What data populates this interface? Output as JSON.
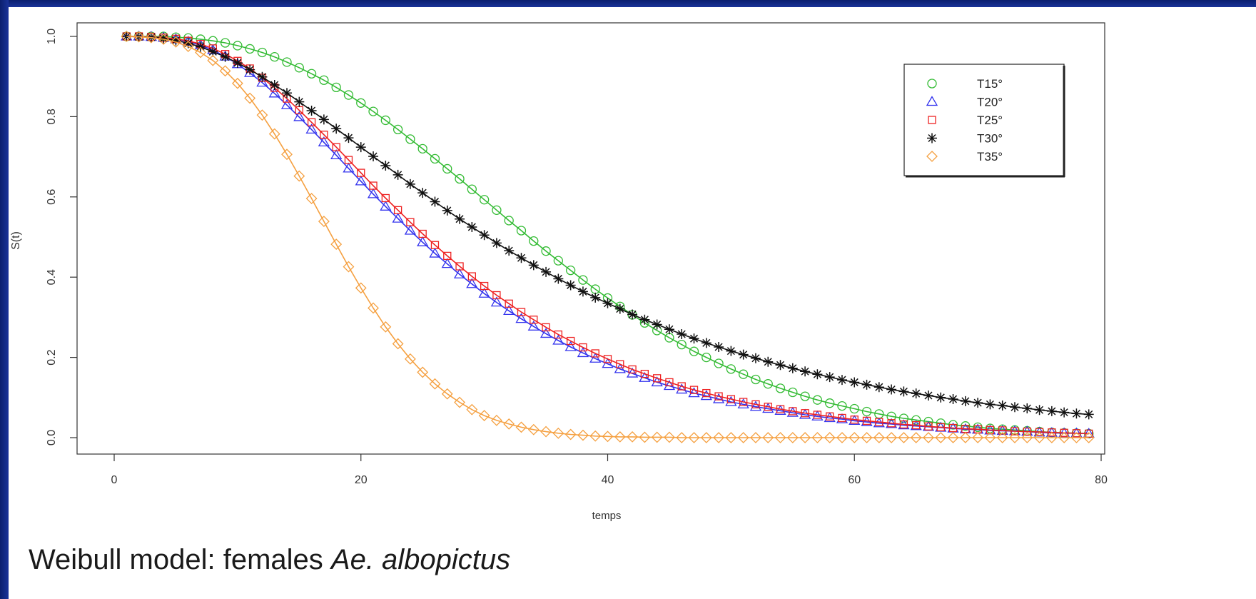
{
  "caption": {
    "prefix": "Weibull model: females ",
    "species": "Ae. albopictus"
  },
  "chart_data": {
    "type": "line",
    "xlabel": "temps",
    "ylabel": "S(t)",
    "xlim": [
      0,
      80
    ],
    "ylim": [
      0,
      1
    ],
    "x_ticks": [
      0,
      20,
      40,
      60,
      80
    ],
    "y_ticks": [
      0.0,
      0.2,
      0.4,
      0.6,
      0.8,
      1.0
    ],
    "x_tick_labels": [
      "0",
      "20",
      "40",
      "60",
      "80"
    ],
    "y_tick_labels": [
      "0.0",
      "0.2",
      "0.4",
      "0.6",
      "0.8",
      "1.0"
    ],
    "grid": false,
    "legend_position": "top-right",
    "x": [
      1,
      2,
      3,
      4,
      5,
      6,
      7,
      8,
      9,
      10,
      11,
      12,
      13,
      14,
      15,
      16,
      17,
      18,
      19,
      20,
      21,
      22,
      23,
      24,
      25,
      26,
      27,
      28,
      29,
      30,
      31,
      32,
      33,
      34,
      35,
      36,
      37,
      38,
      39,
      40,
      41,
      42,
      43,
      44,
      45,
      46,
      47,
      48,
      49,
      50,
      51,
      52,
      53,
      54,
      55,
      56,
      57,
      58,
      59,
      60,
      61,
      62,
      63,
      64,
      65,
      66,
      67,
      68,
      69,
      70,
      71,
      72,
      73,
      74,
      75,
      76,
      77,
      78,
      79
    ],
    "series": [
      {
        "name": "T15°",
        "marker": "circle",
        "color": "#33bb33",
        "values": [
          1.0,
          1.0,
          1.0,
          1.0,
          0.998,
          0.996,
          0.993,
          0.989,
          0.984,
          0.977,
          0.969,
          0.96,
          0.949,
          0.936,
          0.922,
          0.907,
          0.891,
          0.873,
          0.854,
          0.834,
          0.813,
          0.791,
          0.768,
          0.744,
          0.72,
          0.695,
          0.67,
          0.645,
          0.619,
          0.593,
          0.567,
          0.541,
          0.516,
          0.49,
          0.465,
          0.441,
          0.417,
          0.393,
          0.37,
          0.348,
          0.327,
          0.306,
          0.286,
          0.267,
          0.249,
          0.232,
          0.215,
          0.2,
          0.185,
          0.171,
          0.158,
          0.145,
          0.134,
          0.123,
          0.113,
          0.103,
          0.094,
          0.086,
          0.079,
          0.072,
          0.065,
          0.059,
          0.053,
          0.048,
          0.044,
          0.04,
          0.036,
          0.032,
          0.029,
          0.026,
          0.023,
          0.021,
          0.019,
          0.017,
          0.015,
          0.013,
          0.012,
          0.011,
          0.01
        ]
      },
      {
        "name": "T20°",
        "marker": "triangle",
        "color": "#3333ee",
        "values": [
          1.0,
          1.0,
          0.999,
          0.997,
          0.993,
          0.987,
          0.978,
          0.966,
          0.95,
          0.931,
          0.909,
          0.885,
          0.858,
          0.829,
          0.799,
          0.768,
          0.736,
          0.704,
          0.671,
          0.639,
          0.607,
          0.576,
          0.546,
          0.516,
          0.487,
          0.459,
          0.433,
          0.407,
          0.383,
          0.359,
          0.337,
          0.316,
          0.296,
          0.277,
          0.259,
          0.242,
          0.226,
          0.211,
          0.197,
          0.184,
          0.171,
          0.16,
          0.149,
          0.138,
          0.129,
          0.12,
          0.111,
          0.104,
          0.096,
          0.089,
          0.083,
          0.077,
          0.072,
          0.067,
          0.062,
          0.057,
          0.053,
          0.049,
          0.046,
          0.042,
          0.039,
          0.036,
          0.034,
          0.031,
          0.029,
          0.027,
          0.025,
          0.023,
          0.021,
          0.02,
          0.018,
          0.017,
          0.016,
          0.015,
          0.013,
          0.012,
          0.011,
          0.011,
          0.01
        ]
      },
      {
        "name": "T25°",
        "marker": "square",
        "color": "#ee2222",
        "values": [
          1.0,
          1.0,
          0.999,
          0.997,
          0.994,
          0.989,
          0.981,
          0.97,
          0.956,
          0.939,
          0.92,
          0.897,
          0.872,
          0.845,
          0.816,
          0.786,
          0.755,
          0.724,
          0.692,
          0.66,
          0.628,
          0.597,
          0.567,
          0.537,
          0.508,
          0.48,
          0.453,
          0.427,
          0.402,
          0.378,
          0.355,
          0.334,
          0.313,
          0.294,
          0.275,
          0.257,
          0.241,
          0.225,
          0.21,
          0.196,
          0.183,
          0.17,
          0.159,
          0.148,
          0.138,
          0.128,
          0.119,
          0.111,
          0.103,
          0.096,
          0.089,
          0.083,
          0.077,
          0.071,
          0.066,
          0.061,
          0.057,
          0.053,
          0.049,
          0.045,
          0.042,
          0.039,
          0.036,
          0.033,
          0.031,
          0.028,
          0.026,
          0.024,
          0.022,
          0.021,
          0.019,
          0.018,
          0.016,
          0.015,
          0.014,
          0.013,
          0.012,
          0.011,
          0.01
        ]
      },
      {
        "name": "T30°",
        "marker": "asterisk",
        "color": "#111111",
        "values": [
          1.0,
          0.999,
          0.998,
          0.995,
          0.99,
          0.983,
          0.974,
          0.962,
          0.949,
          0.934,
          0.917,
          0.899,
          0.879,
          0.859,
          0.837,
          0.815,
          0.793,
          0.77,
          0.747,
          0.724,
          0.701,
          0.678,
          0.655,
          0.632,
          0.61,
          0.588,
          0.566,
          0.545,
          0.525,
          0.505,
          0.485,
          0.466,
          0.448,
          0.43,
          0.413,
          0.396,
          0.38,
          0.364,
          0.349,
          0.335,
          0.321,
          0.307,
          0.294,
          0.282,
          0.27,
          0.258,
          0.247,
          0.236,
          0.226,
          0.216,
          0.207,
          0.198,
          0.189,
          0.181,
          0.173,
          0.165,
          0.158,
          0.151,
          0.144,
          0.138,
          0.132,
          0.126,
          0.12,
          0.115,
          0.11,
          0.105,
          0.1,
          0.096,
          0.091,
          0.087,
          0.083,
          0.08,
          0.076,
          0.073,
          0.069,
          0.066,
          0.063,
          0.06,
          0.058
        ]
      },
      {
        "name": "T35°",
        "marker": "diamond",
        "color": "#f5a040",
        "values": [
          1.0,
          0.999,
          0.997,
          0.993,
          0.986,
          0.975,
          0.96,
          0.94,
          0.914,
          0.883,
          0.846,
          0.804,
          0.757,
          0.706,
          0.652,
          0.596,
          0.539,
          0.482,
          0.426,
          0.373,
          0.323,
          0.276,
          0.234,
          0.196,
          0.163,
          0.134,
          0.109,
          0.088,
          0.07,
          0.055,
          0.043,
          0.034,
          0.026,
          0.02,
          0.015,
          0.011,
          0.008,
          0.006,
          0.004,
          0.003,
          0.002,
          0.002,
          0.001,
          0.001,
          0.001,
          0.0,
          0.0,
          0.0,
          0.0,
          0.0,
          0.0,
          0.0,
          0.0,
          0.0,
          0.0,
          0.0,
          0.0,
          0.0,
          0.0,
          0.0,
          0.0,
          0.0,
          0.0,
          0.0,
          0.0,
          0.0,
          0.0,
          0.0,
          0.0,
          0.0,
          0.0,
          0.0,
          0.0,
          0.0,
          0.0,
          0.0,
          0.0,
          0.0,
          0.0
        ]
      }
    ]
  }
}
